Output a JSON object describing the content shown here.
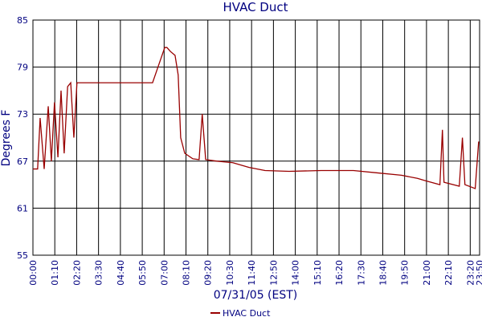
{
  "chart_data": {
    "type": "line",
    "title": "HVAC Duct",
    "xlabel": "07/31/05 (EST)",
    "ylabel": "Degrees F",
    "xlim": [
      0,
      1430
    ],
    "ylim": [
      55,
      85
    ],
    "xticks": [
      {
        "value": 0,
        "label": "00:00"
      },
      {
        "value": 70,
        "label": "01:10"
      },
      {
        "value": 140,
        "label": "02:20"
      },
      {
        "value": 210,
        "label": "03:30"
      },
      {
        "value": 280,
        "label": "04:40"
      },
      {
        "value": 350,
        "label": "05:50"
      },
      {
        "value": 420,
        "label": "07:00"
      },
      {
        "value": 490,
        "label": "08:10"
      },
      {
        "value": 560,
        "label": "09:20"
      },
      {
        "value": 630,
        "label": "10:30"
      },
      {
        "value": 700,
        "label": "11:40"
      },
      {
        "value": 770,
        "label": "12:50"
      },
      {
        "value": 840,
        "label": "14:00"
      },
      {
        "value": 910,
        "label": "15:10"
      },
      {
        "value": 980,
        "label": "16:20"
      },
      {
        "value": 1050,
        "label": "17:30"
      },
      {
        "value": 1120,
        "label": "18:40"
      },
      {
        "value": 1190,
        "label": "19:50"
      },
      {
        "value": 1260,
        "label": "21:00"
      },
      {
        "value": 1330,
        "label": "22:10"
      },
      {
        "value": 1400,
        "label": "23:20"
      },
      {
        "value": 1430,
        "label": "23:50"
      }
    ],
    "yticks": [
      55,
      61,
      67,
      73,
      79,
      85
    ],
    "grid": true,
    "legend": "bottom",
    "series": [
      {
        "name": "HVAC Duct",
        "color": "#990000",
        "x": [
          0,
          15,
          23,
          36,
          49,
          59,
          69,
          80,
          90,
          100,
          111,
          121,
          131,
          141,
          152,
          383,
          409,
          422,
          429,
          440,
          455,
          465,
          473,
          486,
          512,
          532,
          542,
          553,
          589,
          640,
          692,
          743,
          820,
          923,
          1026,
          1103,
          1180,
          1231,
          1257,
          1303,
          1311,
          1316,
          1365,
          1375,
          1383,
          1416,
          1427
        ],
        "values": [
          66,
          66,
          72.5,
          66,
          74,
          67,
          74.5,
          67.5,
          76,
          68,
          76.5,
          77,
          70,
          77,
          77,
          77,
          80,
          81.5,
          81.5,
          81,
          80.5,
          78,
          70,
          68,
          67.3,
          67.2,
          73,
          67.2,
          67,
          66.8,
          66.2,
          65.8,
          65.7,
          65.8,
          65.8,
          65.5,
          65.2,
          64.8,
          64.5,
          64,
          71,
          64.3,
          63.8,
          70,
          64,
          63.5,
          69.5
        ]
      }
    ]
  }
}
